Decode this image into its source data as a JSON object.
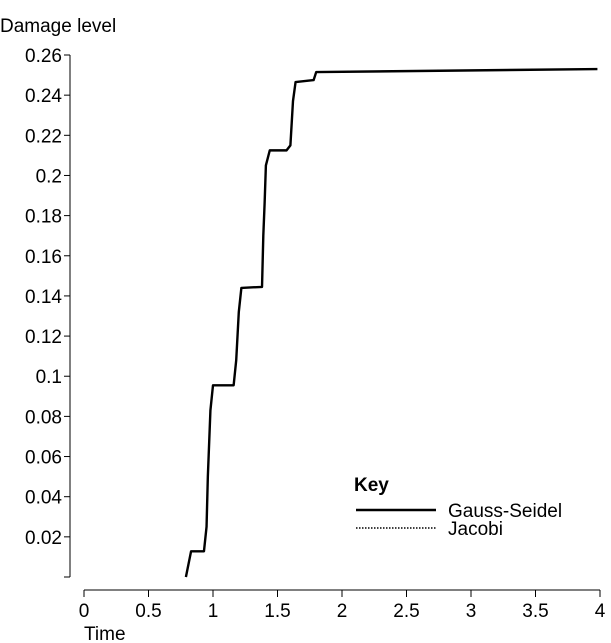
{
  "chart_data": {
    "type": "line",
    "ylabel": "Damage level",
    "xlabel": "Time",
    "xlim": [
      0,
      4
    ],
    "ylim": [
      0,
      0.26
    ],
    "x_ticks": [
      "0",
      "0.5",
      "1",
      "1.5",
      "2",
      "2.5",
      "3",
      "3.5",
      "4"
    ],
    "y_ticks": [
      "0.02",
      "0.04",
      "0.06",
      "0.08",
      "0.1",
      "0.12",
      "0.14",
      "0.16",
      "0.18",
      "0.2",
      "0.22",
      "0.24",
      "0.26"
    ],
    "legend": {
      "title": "Key",
      "position": "bottom-right",
      "entries": [
        {
          "label": "Gauss-Seidel",
          "style": "solid"
        },
        {
          "label": "Jacobi",
          "style": "dotted"
        }
      ]
    },
    "series": [
      {
        "name": "Gauss-Seidel",
        "style": "solid",
        "color": "#000000",
        "points": [
          [
            0.79,
            0
          ],
          [
            0.83,
            0.0128
          ],
          [
            0.93,
            0.0128
          ],
          [
            0.95,
            0.025
          ],
          [
            0.96,
            0.05
          ],
          [
            0.98,
            0.083
          ],
          [
            1.0,
            0.0955
          ],
          [
            1.16,
            0.0955
          ],
          [
            1.18,
            0.108
          ],
          [
            1.2,
            0.132
          ],
          [
            1.22,
            0.144
          ],
          [
            1.38,
            0.1445
          ],
          [
            1.39,
            0.17
          ],
          [
            1.4,
            0.186
          ],
          [
            1.41,
            0.205
          ],
          [
            1.44,
            0.2125
          ],
          [
            1.57,
            0.2125
          ],
          [
            1.6,
            0.215
          ],
          [
            1.62,
            0.237
          ],
          [
            1.64,
            0.2465
          ],
          [
            1.78,
            0.2475
          ],
          [
            1.8,
            0.2515
          ],
          [
            3.98,
            0.253
          ]
        ]
      },
      {
        "name": "Jacobi",
        "style": "dotted",
        "color": "#000000",
        "points": [
          [
            0.79,
            0
          ],
          [
            0.83,
            0.0128
          ],
          [
            0.93,
            0.0128
          ],
          [
            0.95,
            0.025
          ],
          [
            0.96,
            0.05
          ],
          [
            0.98,
            0.083
          ],
          [
            1.0,
            0.0955
          ],
          [
            1.16,
            0.0955
          ],
          [
            1.18,
            0.108
          ],
          [
            1.2,
            0.132
          ],
          [
            1.22,
            0.144
          ],
          [
            1.38,
            0.1445
          ],
          [
            1.39,
            0.17
          ],
          [
            1.4,
            0.186
          ],
          [
            1.41,
            0.205
          ],
          [
            1.44,
            0.2125
          ],
          [
            1.57,
            0.2125
          ],
          [
            1.6,
            0.215
          ],
          [
            1.62,
            0.237
          ],
          [
            1.64,
            0.2465
          ],
          [
            1.78,
            0.2475
          ],
          [
            1.8,
            0.2515
          ],
          [
            3.98,
            0.253
          ]
        ]
      }
    ]
  }
}
